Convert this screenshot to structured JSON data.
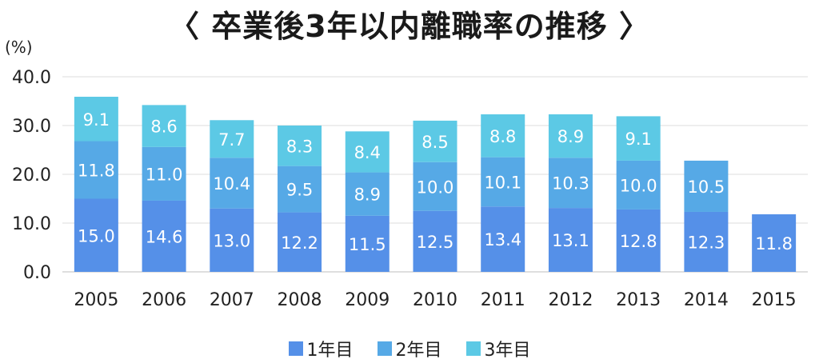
{
  "chart_data": {
    "type": "bar",
    "stacked": true,
    "title": "〈 卒業後3年以内離職率の推移 〉",
    "ylabel": "(%)",
    "xlabel": "",
    "ylim": [
      0,
      40
    ],
    "yticks": [
      "0.0",
      "10.0",
      "20.0",
      "30.0",
      "40.0"
    ],
    "grid": true,
    "legend_position": "bottom",
    "categories": [
      "2005",
      "2006",
      "2007",
      "2008",
      "2009",
      "2010",
      "2011",
      "2012",
      "2013",
      "2014",
      "2015"
    ],
    "series": [
      {
        "name": "1年目",
        "color": "#5590e8",
        "values": [
          15.0,
          14.6,
          13.0,
          12.2,
          11.5,
          12.5,
          13.4,
          13.1,
          12.8,
          12.3,
          11.8
        ],
        "labels": [
          "15.0",
          "14.6",
          "13.0",
          "12.2",
          "11.5",
          "12.5",
          "13.4",
          "13.1",
          "12.8",
          "12.3",
          "11.8"
        ]
      },
      {
        "name": "2年目",
        "color": "#56a9e6",
        "values": [
          11.8,
          11.0,
          10.4,
          9.5,
          8.9,
          10.0,
          10.1,
          10.3,
          10.0,
          10.5,
          null
        ],
        "labels": [
          "11.8",
          "11.0",
          "10.4",
          "9.5",
          "8.9",
          "10.0",
          "10.1",
          "10.3",
          "10.0",
          "10.5",
          null
        ]
      },
      {
        "name": "3年目",
        "color": "#5cc9e5",
        "values": [
          9.1,
          8.6,
          7.7,
          8.3,
          8.4,
          8.5,
          8.8,
          8.9,
          9.1,
          null,
          null
        ],
        "labels": [
          "9.1",
          "8.6",
          "7.7",
          "8.3",
          "8.4",
          "8.5",
          "8.8",
          "8.9",
          "9.1",
          null,
          null
        ]
      }
    ]
  }
}
